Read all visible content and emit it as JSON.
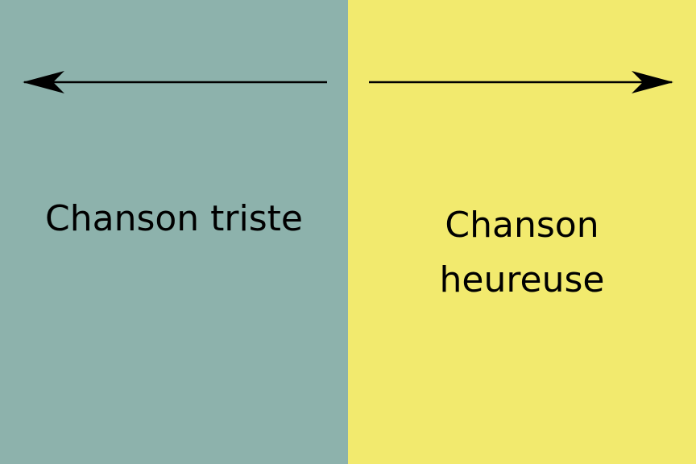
{
  "left_panel": {
    "label": "Chanson triste",
    "background": "#8db2ac",
    "arrow_direction": "left"
  },
  "right_panel": {
    "label_line1": "Chanson",
    "label_line2": "heureuse",
    "background": "#f2ea6e",
    "arrow_direction": "right"
  }
}
